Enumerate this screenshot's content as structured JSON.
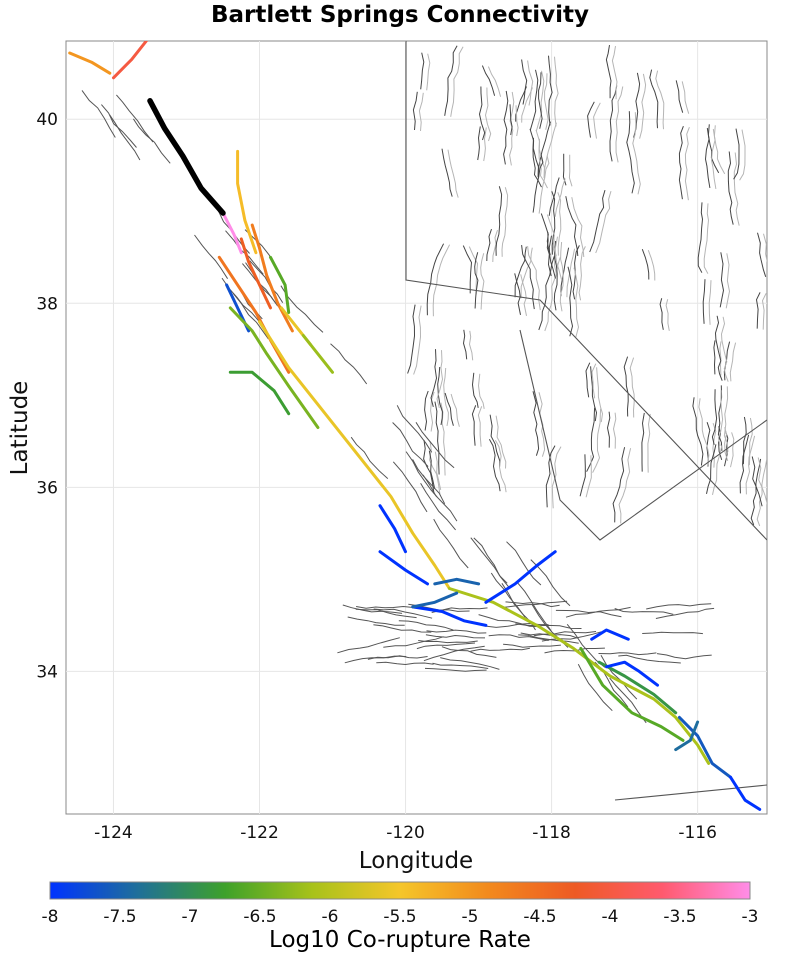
{
  "title": "Bartlett Springs Connectivity",
  "map": {
    "xlabel": "Longitude",
    "ylabel": "Latitude",
    "xlim": [
      -124.65,
      -115.05
    ],
    "ylim": [
      32.45,
      40.85
    ],
    "xticks": [
      -124,
      -122,
      -120,
      -118,
      -116
    ],
    "yticks": [
      34,
      36,
      38,
      40
    ],
    "xtick_labels": [
      "-124",
      "-122",
      "-120",
      "-118",
      "-116"
    ],
    "ytick_labels": [
      "34",
      "36",
      "38",
      "40"
    ],
    "source_fault": {
      "name": "Bartlett Springs",
      "color": "#000000",
      "trace": [
        [
          -123.5,
          40.2
        ],
        [
          -123.3,
          39.9
        ],
        [
          -123.05,
          39.6
        ],
        [
          -122.8,
          39.25
        ],
        [
          -122.5,
          38.98
        ]
      ]
    },
    "corupture_faults": [
      {
        "log10_rate": -3.0,
        "trace": [
          [
            -122.5,
            38.98
          ],
          [
            -122.35,
            38.75
          ],
          [
            -122.25,
            38.55
          ]
        ]
      },
      {
        "log10_rate": -4.0,
        "trace": [
          [
            -123.55,
            40.85
          ],
          [
            -123.75,
            40.65
          ],
          [
            -124.0,
            40.45
          ]
        ]
      },
      {
        "log10_rate": -5.0,
        "trace": [
          [
            -124.6,
            40.72
          ],
          [
            -124.3,
            40.62
          ],
          [
            -124.05,
            40.5
          ]
        ]
      },
      {
        "log10_rate": -4.6,
        "trace": [
          [
            -122.55,
            38.5
          ],
          [
            -122.3,
            38.2
          ],
          [
            -122.05,
            37.9
          ],
          [
            -121.85,
            37.6
          ],
          [
            -121.6,
            37.25
          ]
        ]
      },
      {
        "log10_rate": -5.4,
        "trace": [
          [
            -122.3,
            39.65
          ],
          [
            -122.3,
            39.3
          ],
          [
            -122.2,
            38.9
          ],
          [
            -122.05,
            38.55
          ]
        ]
      },
      {
        "log10_rate": -4.7,
        "trace": [
          [
            -122.1,
            38.85
          ],
          [
            -122.0,
            38.6
          ],
          [
            -121.9,
            38.3
          ],
          [
            -121.75,
            38.0
          ],
          [
            -121.55,
            37.7
          ]
        ]
      },
      {
        "log10_rate": -4.3,
        "trace": [
          [
            -122.25,
            38.7
          ],
          [
            -122.15,
            38.45
          ],
          [
            -122.0,
            38.2
          ],
          [
            -121.85,
            37.95
          ]
        ]
      },
      {
        "log10_rate": -6.6,
        "trace": [
          [
            -121.85,
            38.5
          ],
          [
            -121.65,
            38.2
          ],
          [
            -121.6,
            37.9
          ]
        ]
      },
      {
        "log10_rate": -5.6,
        "trace": [
          [
            -121.7,
            37.95
          ],
          [
            -121.5,
            37.75
          ],
          [
            -121.3,
            37.55
          ]
        ]
      },
      {
        "log10_rate": -6.2,
        "trace": [
          [
            -121.4,
            37.65
          ],
          [
            -121.2,
            37.45
          ],
          [
            -121.0,
            37.25
          ]
        ]
      },
      {
        "log10_rate": -7.7,
        "trace": [
          [
            -122.45,
            38.2
          ],
          [
            -122.3,
            37.95
          ],
          [
            -122.15,
            37.7
          ]
        ]
      },
      {
        "log10_rate": -6.8,
        "trace": [
          [
            -122.4,
            37.25
          ],
          [
            -122.1,
            37.25
          ],
          [
            -121.8,
            37.05
          ],
          [
            -121.6,
            36.8
          ]
        ]
      },
      {
        "log10_rate": -6.4,
        "trace": [
          [
            -122.4,
            37.95
          ],
          [
            -122.1,
            37.7
          ],
          [
            -121.9,
            37.45
          ],
          [
            -121.6,
            37.1
          ],
          [
            -121.2,
            36.65
          ]
        ]
      },
      {
        "log10_rate": -5.6,
        "trace": [
          [
            -122.0,
            37.8
          ],
          [
            -121.6,
            37.3
          ],
          [
            -121.1,
            36.8
          ],
          [
            -120.6,
            36.3
          ],
          [
            -120.2,
            35.9
          ],
          [
            -119.9,
            35.5
          ],
          [
            -119.6,
            35.15
          ],
          [
            -119.4,
            34.9
          ]
        ]
      },
      {
        "log10_rate": -6.1,
        "trace": [
          [
            -119.4,
            34.9
          ],
          [
            -118.8,
            34.75
          ],
          [
            -118.2,
            34.5
          ],
          [
            -117.7,
            34.25
          ],
          [
            -117.2,
            33.95
          ],
          [
            -116.6,
            33.7
          ],
          [
            -116.3,
            33.5
          ],
          [
            -116.0,
            33.2
          ],
          [
            -115.85,
            33.0
          ]
        ]
      },
      {
        "log10_rate": -6.6,
        "trace": [
          [
            -117.6,
            34.25
          ],
          [
            -117.3,
            33.85
          ],
          [
            -116.9,
            33.55
          ],
          [
            -116.5,
            33.4
          ],
          [
            -116.2,
            33.25
          ]
        ]
      },
      {
        "log10_rate": -6.9,
        "trace": [
          [
            -117.35,
            34.1
          ],
          [
            -117.0,
            33.95
          ],
          [
            -116.6,
            33.75
          ],
          [
            -116.3,
            33.55
          ]
        ]
      },
      {
        "log10_rate": -7.6,
        "trace": [
          [
            -116.25,
            33.5
          ],
          [
            -116.0,
            33.3
          ],
          [
            -115.8,
            33.0
          ],
          [
            -115.55,
            32.85
          ]
        ]
      },
      {
        "log10_rate": -8.0,
        "trace": [
          [
            -115.55,
            32.85
          ],
          [
            -115.35,
            32.6
          ],
          [
            -115.15,
            32.5
          ]
        ]
      },
      {
        "log10_rate": -8.0,
        "trace": [
          [
            -120.35,
            35.8
          ],
          [
            -120.15,
            35.55
          ],
          [
            -120.0,
            35.3
          ]
        ]
      },
      {
        "log10_rate": -8.0,
        "trace": [
          [
            -120.35,
            35.3
          ],
          [
            -120.0,
            35.1
          ],
          [
            -119.7,
            34.95
          ]
        ]
      },
      {
        "log10_rate": -8.0,
        "trace": [
          [
            -119.9,
            34.7
          ],
          [
            -119.5,
            34.65
          ],
          [
            -119.2,
            34.55
          ],
          [
            -118.9,
            34.5
          ]
        ]
      },
      {
        "log10_rate": -8.0,
        "trace": [
          [
            -118.9,
            34.75
          ],
          [
            -118.5,
            34.95
          ],
          [
            -118.2,
            35.15
          ],
          [
            -117.95,
            35.3
          ]
        ]
      },
      {
        "log10_rate": -7.5,
        "trace": [
          [
            -119.6,
            34.95
          ],
          [
            -119.3,
            35.0
          ],
          [
            -119.0,
            34.95
          ]
        ]
      },
      {
        "log10_rate": -8.0,
        "trace": [
          [
            -117.45,
            34.35
          ],
          [
            -117.25,
            34.45
          ],
          [
            -116.95,
            34.35
          ]
        ]
      },
      {
        "log10_rate": -8.0,
        "trace": [
          [
            -117.25,
            34.05
          ],
          [
            -117.0,
            34.1
          ],
          [
            -116.8,
            34.0
          ],
          [
            -116.55,
            33.85
          ]
        ]
      },
      {
        "log10_rate": -7.4,
        "trace": [
          [
            -116.0,
            33.45
          ],
          [
            -116.1,
            33.25
          ],
          [
            -116.3,
            33.15
          ]
        ]
      },
      {
        "log10_rate": -7.5,
        "trace": [
          [
            -119.9,
            34.7
          ],
          [
            -119.6,
            34.75
          ],
          [
            -119.3,
            34.85
          ]
        ]
      }
    ]
  },
  "colorbar": {
    "label": "Log10 Co-rupture Rate",
    "min": -8,
    "max": -3,
    "ticks": [
      -8,
      -7.5,
      -7,
      -6.5,
      -6,
      -5.5,
      -5,
      -4.5,
      -4,
      -3.5,
      -3
    ],
    "tick_labels": [
      "-8",
      "-7.5",
      "-7",
      "-6.5",
      "-6",
      "-5.5",
      "-5",
      "-4.5",
      "-4",
      "-3.5",
      "-3"
    ],
    "colors": [
      "#0033ff",
      "#1f6f9a",
      "#3ea12a",
      "#a8c21a",
      "#f5c62a",
      "#f28a1d",
      "#ee5a24",
      "#ff5a6e",
      "#ff8de8"
    ]
  }
}
